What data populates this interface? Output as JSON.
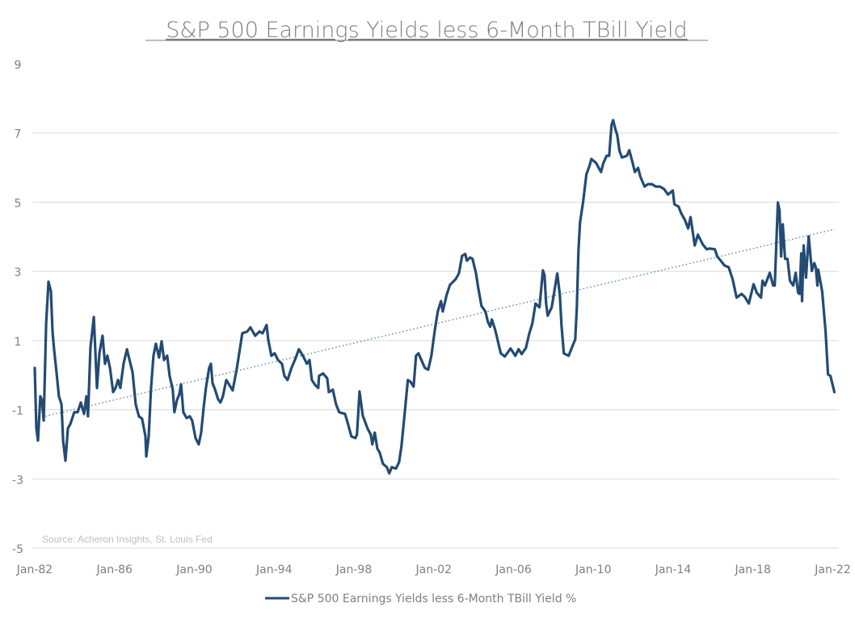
{
  "chart_data": {
    "type": "line",
    "title": "S&P 500 Earnings Yields less 6-Month TBill Yield",
    "xlabel": "",
    "ylabel": "",
    "source": "Source: Acheron Insights, St. Louis Fed",
    "ylim": [
      -5,
      9
    ],
    "yticks": [
      9,
      7,
      5,
      3,
      1,
      -1,
      -3,
      -5
    ],
    "gridlines": [
      7,
      5,
      3,
      1,
      -1,
      -3,
      -5
    ],
    "xlim": [
      1982,
      2022.1
    ],
    "xticks": [
      {
        "label": "Jan-82",
        "year": 1982
      },
      {
        "label": "Jan-86",
        "year": 1986
      },
      {
        "label": "Jan-90",
        "year": 1990
      },
      {
        "label": "Jan-94",
        "year": 1994
      },
      {
        "label": "Jan-98",
        "year": 1998
      },
      {
        "label": "Jan-02",
        "year": 2002
      },
      {
        "label": "Jan-06",
        "year": 2006
      },
      {
        "label": "Jan-10",
        "year": 2010
      },
      {
        "label": "Jan-14",
        "year": 2014
      },
      {
        "label": "Jan-18",
        "year": 2018
      },
      {
        "label": "Jan-22",
        "year": 2022
      }
    ],
    "legend": {
      "position": "bottom",
      "label": "S&P 500 Earnings Yields less 6-Month TBill Yield %"
    },
    "colors": {
      "series": "#234b73",
      "trend": "#4a7db5",
      "grid": "#d9d9d9",
      "text": "#7f7f7f"
    },
    "trendline": {
      "type": "linear",
      "start": [
        1982,
        -1.26
      ],
      "end": [
        2022.1,
        4.22
      ]
    },
    "series": [
      {
        "name": "S&P 500 Earnings Yields less 6-Month TBill Yield %",
        "points": [
          [
            1982.0,
            0.21
          ],
          [
            1982.08,
            -1.54
          ],
          [
            1982.16,
            -1.89
          ],
          [
            1982.28,
            -0.61
          ],
          [
            1982.36,
            -0.72
          ],
          [
            1982.45,
            -1.31
          ],
          [
            1982.57,
            1.49
          ],
          [
            1982.69,
            2.7
          ],
          [
            1982.81,
            2.42
          ],
          [
            1982.89,
            1.26
          ],
          [
            1982.97,
            0.75
          ],
          [
            1983.09,
            0.09
          ],
          [
            1983.21,
            -0.61
          ],
          [
            1983.34,
            -0.84
          ],
          [
            1983.42,
            -1.89
          ],
          [
            1983.54,
            -2.47
          ],
          [
            1983.66,
            -1.54
          ],
          [
            1983.78,
            -1.42
          ],
          [
            1983.98,
            -1.07
          ],
          [
            1984.15,
            -1.07
          ],
          [
            1984.31,
            -0.79
          ],
          [
            1984.47,
            -1.12
          ],
          [
            1984.59,
            -0.61
          ],
          [
            1984.67,
            -1.19
          ],
          [
            1984.79,
            0.79
          ],
          [
            1984.96,
            1.68
          ],
          [
            1985.12,
            -0.37
          ],
          [
            1985.24,
            0.63
          ],
          [
            1985.4,
            1.14
          ],
          [
            1985.52,
            0.33
          ],
          [
            1985.64,
            0.56
          ],
          [
            1985.77,
            0.21
          ],
          [
            1985.93,
            -0.49
          ],
          [
            1986.05,
            -0.37
          ],
          [
            1986.17,
            -0.14
          ],
          [
            1986.29,
            -0.37
          ],
          [
            1986.45,
            0.33
          ],
          [
            1986.62,
            0.75
          ],
          [
            1986.7,
            0.56
          ],
          [
            1986.9,
            0.09
          ],
          [
            1987.06,
            -0.84
          ],
          [
            1987.22,
            -1.19
          ],
          [
            1987.38,
            -1.26
          ],
          [
            1987.55,
            -1.77
          ],
          [
            1987.59,
            -2.35
          ],
          [
            1987.71,
            -1.77
          ],
          [
            1987.83,
            -0.37
          ],
          [
            1987.95,
            0.56
          ],
          [
            1988.07,
            0.91
          ],
          [
            1988.23,
            0.51
          ],
          [
            1988.36,
            0.98
          ],
          [
            1988.48,
            0.44
          ],
          [
            1988.64,
            0.56
          ],
          [
            1988.76,
            -0.02
          ],
          [
            1988.92,
            -0.42
          ],
          [
            1989.0,
            -1.07
          ],
          [
            1989.13,
            -0.72
          ],
          [
            1989.25,
            -0.54
          ],
          [
            1989.33,
            -0.26
          ],
          [
            1989.45,
            -1.07
          ],
          [
            1989.61,
            -1.24
          ],
          [
            1989.77,
            -1.19
          ],
          [
            1989.89,
            -1.31
          ],
          [
            1990.06,
            -1.82
          ],
          [
            1990.22,
            -2.0
          ],
          [
            1990.34,
            -1.66
          ],
          [
            1990.46,
            -0.96
          ],
          [
            1990.58,
            -0.37
          ],
          [
            1990.74,
            0.21
          ],
          [
            1990.83,
            0.33
          ],
          [
            1990.91,
            -0.23
          ],
          [
            1991.03,
            -0.4
          ],
          [
            1991.19,
            -0.7
          ],
          [
            1991.31,
            -0.79
          ],
          [
            1991.43,
            -0.61
          ],
          [
            1991.6,
            -0.14
          ],
          [
            1991.92,
            -0.44
          ],
          [
            1992.12,
            0.16
          ],
          [
            1992.28,
            0.75
          ],
          [
            1992.4,
            1.21
          ],
          [
            1992.65,
            1.26
          ],
          [
            1992.81,
            1.38
          ],
          [
            1993.05,
            1.14
          ],
          [
            1993.26,
            1.26
          ],
          [
            1993.42,
            1.21
          ],
          [
            1993.62,
            1.45
          ],
          [
            1993.7,
            1.03
          ],
          [
            1993.86,
            0.56
          ],
          [
            1994.02,
            0.63
          ],
          [
            1994.19,
            0.44
          ],
          [
            1994.39,
            0.33
          ],
          [
            1994.51,
            -0.02
          ],
          [
            1994.67,
            -0.14
          ],
          [
            1994.87,
            0.21
          ],
          [
            1995.04,
            0.44
          ],
          [
            1995.24,
            0.75
          ],
          [
            1995.44,
            0.56
          ],
          [
            1995.64,
            0.33
          ],
          [
            1995.77,
            0.44
          ],
          [
            1995.89,
            -0.14
          ],
          [
            1996.05,
            -0.28
          ],
          [
            1996.21,
            -0.37
          ],
          [
            1996.25,
            -0.02
          ],
          [
            1996.45,
            0.05
          ],
          [
            1996.66,
            -0.09
          ],
          [
            1996.74,
            -0.49
          ],
          [
            1996.94,
            -0.42
          ],
          [
            1997.1,
            -0.84
          ],
          [
            1997.26,
            -1.07
          ],
          [
            1997.55,
            -1.12
          ],
          [
            1997.67,
            -1.35
          ],
          [
            1997.87,
            -1.77
          ],
          [
            1998.07,
            -1.82
          ],
          [
            1998.15,
            -1.72
          ],
          [
            1998.28,
            -0.47
          ],
          [
            1998.44,
            -1.17
          ],
          [
            1998.68,
            -1.54
          ],
          [
            1998.84,
            -1.72
          ],
          [
            1998.92,
            -2.0
          ],
          [
            1999.04,
            -1.66
          ],
          [
            1999.17,
            -2.12
          ],
          [
            1999.29,
            -2.24
          ],
          [
            1999.45,
            -2.56
          ],
          [
            1999.65,
            -2.66
          ],
          [
            1999.77,
            -2.84
          ],
          [
            1999.89,
            -2.66
          ],
          [
            2000.1,
            -2.7
          ],
          [
            2000.26,
            -2.52
          ],
          [
            2000.38,
            -2.05
          ],
          [
            2000.54,
            -1.12
          ],
          [
            2000.7,
            -0.14
          ],
          [
            2000.83,
            -0.19
          ],
          [
            2000.99,
            -0.33
          ],
          [
            2001.11,
            0.56
          ],
          [
            2001.23,
            0.63
          ],
          [
            2001.55,
            0.21
          ],
          [
            2001.72,
            0.16
          ],
          [
            2001.88,
            0.56
          ],
          [
            2002.04,
            1.26
          ],
          [
            2002.2,
            1.84
          ],
          [
            2002.36,
            2.14
          ],
          [
            2002.45,
            1.84
          ],
          [
            2002.65,
            2.33
          ],
          [
            2002.81,
            2.61
          ],
          [
            2003.09,
            2.77
          ],
          [
            2003.26,
            2.94
          ],
          [
            2003.42,
            3.45
          ],
          [
            2003.58,
            3.5
          ],
          [
            2003.66,
            3.31
          ],
          [
            2003.82,
            3.4
          ],
          [
            2003.94,
            3.36
          ],
          [
            2004.11,
            2.96
          ],
          [
            2004.23,
            2.52
          ],
          [
            2004.39,
            2.0
          ],
          [
            2004.59,
            1.84
          ],
          [
            2004.71,
            1.54
          ],
          [
            2004.83,
            1.4
          ],
          [
            2004.91,
            1.61
          ],
          [
            2005.08,
            1.31
          ],
          [
            2005.36,
            0.63
          ],
          [
            2005.56,
            0.54
          ],
          [
            2005.85,
            0.77
          ],
          [
            2006.09,
            0.56
          ],
          [
            2006.25,
            0.75
          ],
          [
            2006.41,
            0.61
          ],
          [
            2006.62,
            0.79
          ],
          [
            2006.78,
            1.19
          ],
          [
            2006.94,
            1.49
          ],
          [
            2007.1,
            2.07
          ],
          [
            2007.3,
            1.96
          ],
          [
            2007.47,
            3.03
          ],
          [
            2007.55,
            2.89
          ],
          [
            2007.63,
            2.07
          ],
          [
            2007.71,
            1.72
          ],
          [
            2007.91,
            1.96
          ],
          [
            2008.11,
            2.66
          ],
          [
            2008.19,
            2.94
          ],
          [
            2008.32,
            2.31
          ],
          [
            2008.4,
            1.45
          ],
          [
            2008.52,
            0.63
          ],
          [
            2008.76,
            0.56
          ],
          [
            2009.0,
            0.91
          ],
          [
            2009.09,
            1.03
          ],
          [
            2009.17,
            1.96
          ],
          [
            2009.25,
            3.59
          ],
          [
            2009.33,
            4.41
          ],
          [
            2009.49,
            5.03
          ],
          [
            2009.65,
            5.8
          ],
          [
            2009.81,
            6.06
          ],
          [
            2009.9,
            6.25
          ],
          [
            2010.14,
            6.13
          ],
          [
            2010.38,
            5.87
          ],
          [
            2010.5,
            6.13
          ],
          [
            2010.66,
            6.34
          ],
          [
            2010.79,
            6.34
          ],
          [
            2010.91,
            7.23
          ],
          [
            2010.99,
            7.37
          ],
          [
            2011.11,
            7.09
          ],
          [
            2011.19,
            6.95
          ],
          [
            2011.31,
            6.48
          ],
          [
            2011.43,
            6.29
          ],
          [
            2011.68,
            6.34
          ],
          [
            2011.8,
            6.5
          ],
          [
            2011.96,
            6.15
          ],
          [
            2012.08,
            5.87
          ],
          [
            2012.24,
            5.99
          ],
          [
            2012.36,
            5.73
          ],
          [
            2012.57,
            5.45
          ],
          [
            2012.73,
            5.52
          ],
          [
            2012.93,
            5.52
          ],
          [
            2013.13,
            5.45
          ],
          [
            2013.34,
            5.45
          ],
          [
            2013.54,
            5.38
          ],
          [
            2013.74,
            5.22
          ],
          [
            2013.98,
            5.34
          ],
          [
            2014.06,
            4.94
          ],
          [
            2014.27,
            4.87
          ],
          [
            2014.39,
            4.69
          ],
          [
            2014.59,
            4.48
          ],
          [
            2014.75,
            4.24
          ],
          [
            2014.87,
            4.57
          ],
          [
            2015.08,
            3.75
          ],
          [
            2015.24,
            4.06
          ],
          [
            2015.48,
            3.78
          ],
          [
            2015.68,
            3.64
          ],
          [
            2015.81,
            3.66
          ],
          [
            2016.09,
            3.64
          ],
          [
            2016.21,
            3.43
          ],
          [
            2016.41,
            3.29
          ],
          [
            2016.57,
            3.17
          ],
          [
            2016.78,
            3.12
          ],
          [
            2016.98,
            2.77
          ],
          [
            2017.18,
            2.24
          ],
          [
            2017.43,
            2.35
          ],
          [
            2017.59,
            2.26
          ],
          [
            2017.79,
            2.07
          ],
          [
            2018.03,
            2.63
          ],
          [
            2018.19,
            2.38
          ],
          [
            2018.4,
            2.24
          ],
          [
            2018.48,
            2.73
          ],
          [
            2018.6,
            2.59
          ],
          [
            2018.84,
            2.96
          ],
          [
            2019.01,
            2.59
          ],
          [
            2019.09,
            2.59
          ],
          [
            2019.25,
            4.99
          ],
          [
            2019.33,
            4.76
          ],
          [
            2019.41,
            3.43
          ],
          [
            2019.49,
            4.36
          ],
          [
            2019.61,
            3.36
          ],
          [
            2019.73,
            3.36
          ],
          [
            2019.85,
            2.73
          ],
          [
            2020.02,
            2.59
          ],
          [
            2020.14,
            2.96
          ],
          [
            2020.26,
            2.38
          ],
          [
            2020.34,
            2.35
          ],
          [
            2020.42,
            3.52
          ],
          [
            2020.46,
            2.14
          ],
          [
            2020.54,
            3.75
          ],
          [
            2020.66,
            2.82
          ],
          [
            2020.79,
            4.01
          ],
          [
            2020.87,
            3.52
          ],
          [
            2020.95,
            3.01
          ],
          [
            2021.07,
            3.24
          ],
          [
            2021.15,
            3.12
          ],
          [
            2021.23,
            2.59
          ],
          [
            2021.27,
            3.05
          ],
          [
            2021.47,
            2.42
          ],
          [
            2021.64,
            1.26
          ],
          [
            2021.76,
            0.02
          ],
          [
            2021.88,
            -0.02
          ],
          [
            2022.08,
            -0.49
          ]
        ]
      }
    ]
  }
}
